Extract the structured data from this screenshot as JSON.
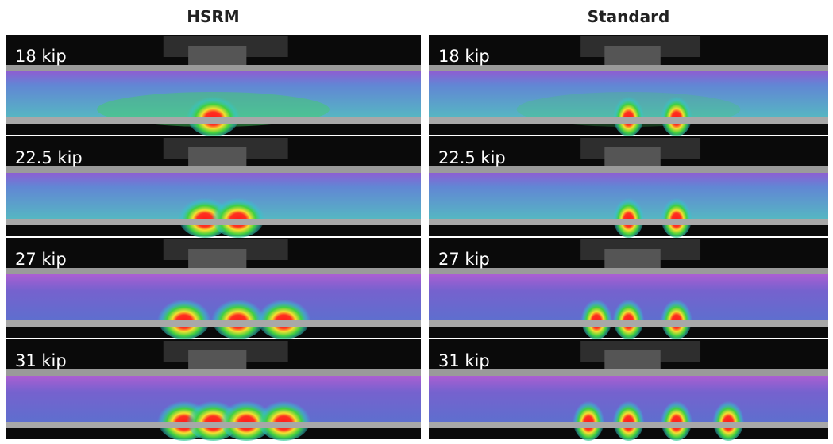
{
  "columns": [
    {
      "title": "HSRM",
      "panels": [
        {
          "label": "18 kip"
        },
        {
          "label": "22.5 kip"
        },
        {
          "label": "27 kip"
        },
        {
          "label": "31 kip"
        }
      ]
    },
    {
      "title": "Standard",
      "panels": [
        {
          "label": "18 kip"
        },
        {
          "label": "22.5 kip"
        },
        {
          "label": "27 kip"
        },
        {
          "label": "31 kip"
        }
      ]
    }
  ]
}
